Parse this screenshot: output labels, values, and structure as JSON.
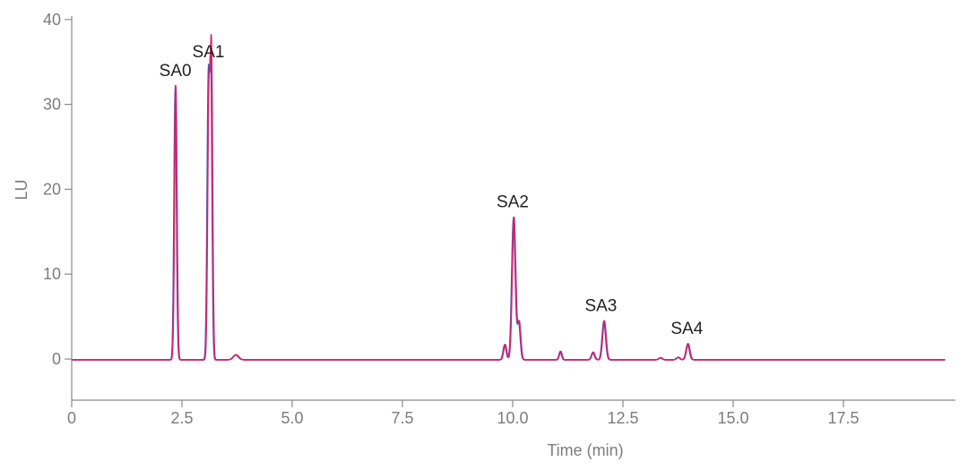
{
  "chart_data": {
    "type": "line",
    "title": "",
    "xlabel": "Time (min)",
    "ylabel": "LU",
    "xlim": [
      0,
      20
    ],
    "ylim": [
      -5,
      40
    ],
    "x_ticks": [
      0,
      2.5,
      5,
      7.5,
      10,
      12.5,
      15,
      17.5
    ],
    "x_tick_labels": [
      "0",
      "2.5",
      "5.0",
      "7.5",
      "10.0",
      "12.5",
      "15.0",
      "17.5"
    ],
    "y_ticks": [
      0,
      10,
      20,
      30,
      40
    ],
    "y_tick_labels": [
      "0",
      "10",
      "20",
      "30",
      "40"
    ],
    "grid": false,
    "legend": "none",
    "colors": {
      "axis": "#8a8a8a",
      "axis_text": "#7c7c7c",
      "label_text": "#222222",
      "trace_colors": [
        "#5b4a8f",
        "#2f5db8",
        "#c0397f",
        "#8e3f9e",
        "#d1236e"
      ]
    },
    "baseline": -0.1,
    "x_end": 19.8,
    "peaks": [
      {
        "rt": 2.35,
        "height": 32.3,
        "width": 0.028
      },
      {
        "rt": 3.1,
        "height": 31.8,
        "width": 0.028
      },
      {
        "rt": 3.16,
        "height": 34.5,
        "width": 0.026
      },
      {
        "rt": 3.72,
        "height": 0.6,
        "width": 0.06
      },
      {
        "rt": 9.82,
        "height": 1.8,
        "width": 0.035
      },
      {
        "rt": 10.02,
        "height": 16.8,
        "width": 0.04
      },
      {
        "rt": 10.14,
        "height": 4.4,
        "width": 0.035
      },
      {
        "rt": 11.08,
        "height": 1.0,
        "width": 0.03
      },
      {
        "rt": 11.82,
        "height": 0.9,
        "width": 0.035
      },
      {
        "rt": 12.07,
        "height": 4.6,
        "width": 0.04
      },
      {
        "rt": 13.35,
        "height": 0.25,
        "width": 0.04
      },
      {
        "rt": 13.75,
        "height": 0.3,
        "width": 0.04
      },
      {
        "rt": 13.97,
        "height": 1.9,
        "width": 0.04
      }
    ],
    "annotations": [
      {
        "text": "SA0",
        "x": 2.35,
        "y": 32.3
      },
      {
        "text": "SA1",
        "x": 3.1,
        "y": 34.5
      },
      {
        "text": "SA2",
        "x": 10.0,
        "y": 16.8
      },
      {
        "text": "SA3",
        "x": 12.0,
        "y": 4.6
      },
      {
        "text": "SA4",
        "x": 13.95,
        "y": 1.9
      }
    ],
    "series": [
      {
        "color": "#5b4a8f"
      },
      {
        "color": "#2f5db8"
      },
      {
        "color": "#c0397f"
      },
      {
        "color": "#8e3f9e"
      },
      {
        "color": "#d1236e"
      }
    ]
  }
}
